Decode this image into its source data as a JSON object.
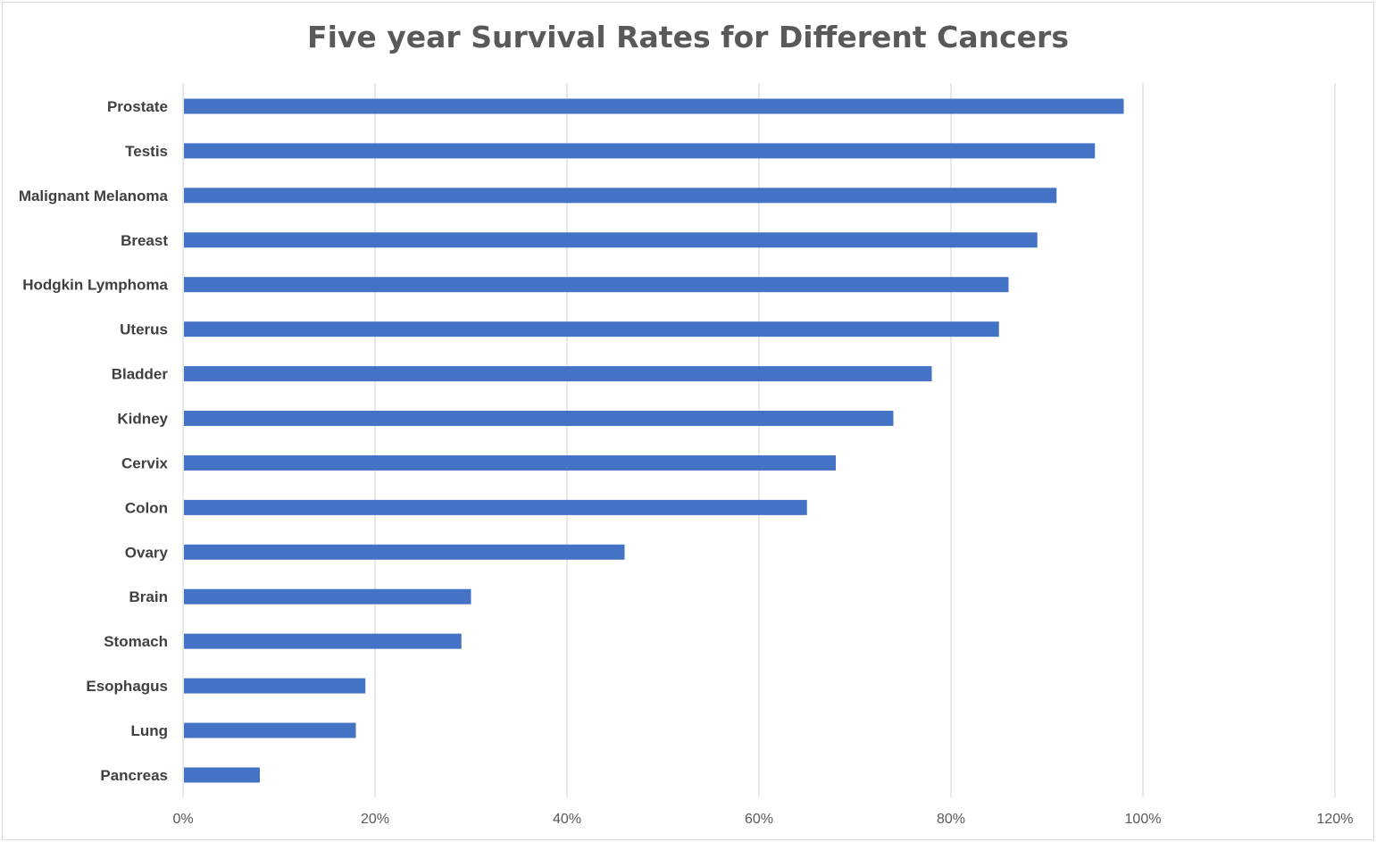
{
  "chart_data": {
    "type": "bar",
    "orientation": "horizontal",
    "title": "Five year Survival Rates for Different Cancers",
    "xlabel": "",
    "ylabel": "",
    "xlim": [
      0,
      120
    ],
    "x_ticks": [
      "0%",
      "20%",
      "40%",
      "60%",
      "80%",
      "100%",
      "120%"
    ],
    "x_tick_values": [
      0,
      20,
      40,
      60,
      80,
      100,
      120
    ],
    "grid": "vertical",
    "legend": "none",
    "bar_color": "#4472C4",
    "categories": [
      "Prostate",
      "Testis",
      "Malignant Melanoma",
      "Breast",
      "Hodgkin Lymphoma",
      "Uterus",
      "Bladder",
      "Kidney",
      "Cervix",
      "Colon",
      "Ovary",
      "Brain",
      "Stomach",
      "Esophagus",
      "Lung",
      "Pancreas"
    ],
    "values": [
      98,
      95,
      91,
      89,
      86,
      85,
      78,
      74,
      68,
      65,
      46,
      30,
      29,
      19,
      18,
      8
    ]
  }
}
